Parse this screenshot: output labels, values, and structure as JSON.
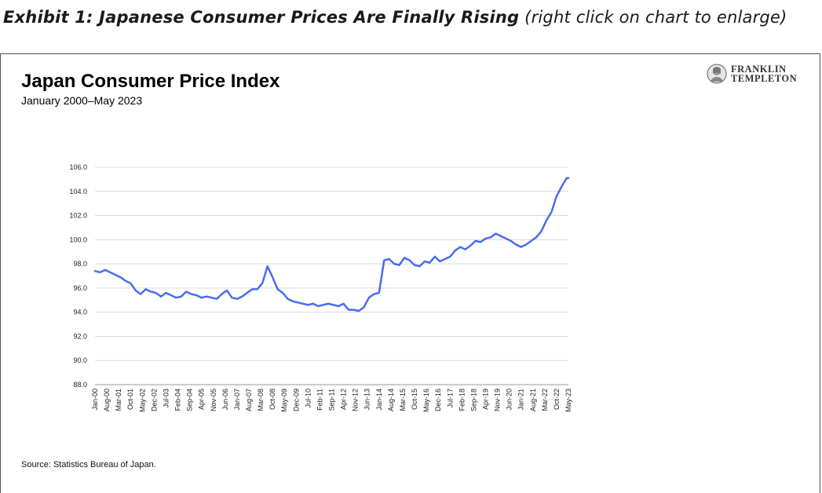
{
  "exhibit": {
    "label": "Exhibit 1: Japanese Consumer Prices Are Finally Rising",
    "note": "(right click on chart to enlarge)"
  },
  "logo": {
    "line1": "FRANKLIN",
    "line2": "TEMPLETON",
    "icon": "franklin-portrait-icon"
  },
  "source": "Source: Statistics Bureau of Japan.",
  "colors": {
    "line": "#4a6cf0",
    "grid": "#d9d9d9",
    "axis": "#999999"
  },
  "chart_data": {
    "type": "line",
    "title": "Japan Consumer Price Index",
    "subtitle": "January 2000–May 2023",
    "xlabel": "",
    "ylabel": "",
    "ylim": [
      88.0,
      106.0
    ],
    "yticks": [
      "88.0",
      "90.0",
      "92.0",
      "94.0",
      "96.0",
      "98.0",
      "100.0",
      "102.0",
      "104.0",
      "106.0"
    ],
    "grid": "horizontal",
    "legend": "none",
    "xtick_labels": [
      "Jan-00",
      "Aug-00",
      "Mar-01",
      "Oct-01",
      "May-02",
      "Dec-02",
      "Jul-03",
      "Feb-04",
      "Sep-04",
      "Apr-05",
      "Nov-05",
      "Jun-06",
      "Jan-07",
      "Aug-07",
      "Mar-08",
      "Oct-08",
      "May-09",
      "Dec-09",
      "Jul-10",
      "Feb-11",
      "Sep-11",
      "Apr-12",
      "Nov-12",
      "Jun-13",
      "Jan-14",
      "Aug-14",
      "Mar-15",
      "Oct-15",
      "May-16",
      "Dec-16",
      "Jul-17",
      "Feb-18",
      "Sep-18",
      "Apr-19",
      "Nov-19",
      "Jun-20",
      "Jan-21",
      "Aug-21",
      "Mar-22",
      "Oct-22",
      "May-23"
    ],
    "series": [
      {
        "name": "",
        "x": [
          "Jan-00",
          "Apr-00",
          "Jul-00",
          "Oct-00",
          "Jan-01",
          "Apr-01",
          "Jul-01",
          "Oct-01",
          "Jan-02",
          "Apr-02",
          "Jul-02",
          "Oct-02",
          "Jan-03",
          "Apr-03",
          "Jul-03",
          "Oct-03",
          "Jan-04",
          "Apr-04",
          "Jul-04",
          "Oct-04",
          "Jan-05",
          "Apr-05",
          "Jul-05",
          "Oct-05",
          "Jan-06",
          "Apr-06",
          "Jul-06",
          "Oct-06",
          "Jan-07",
          "Apr-07",
          "Jul-07",
          "Oct-07",
          "Jan-08",
          "Apr-08",
          "Jul-08",
          "Oct-08",
          "Jan-09",
          "Apr-09",
          "Jul-09",
          "Oct-09",
          "Jan-10",
          "Apr-10",
          "Jul-10",
          "Oct-10",
          "Jan-11",
          "Apr-11",
          "Jul-11",
          "Oct-11",
          "Jan-12",
          "Apr-12",
          "Jul-12",
          "Oct-12",
          "Jan-13",
          "Apr-13",
          "Jul-13",
          "Oct-13",
          "Jan-14",
          "Apr-14",
          "Jul-14",
          "Oct-14",
          "Jan-15",
          "Apr-15",
          "Jul-15",
          "Oct-15",
          "Jan-16",
          "Apr-16",
          "Jul-16",
          "Oct-16",
          "Jan-17",
          "Apr-17",
          "Jul-17",
          "Oct-17",
          "Jan-18",
          "Apr-18",
          "Jul-18",
          "Oct-18",
          "Jan-19",
          "Apr-19",
          "Jul-19",
          "Oct-19",
          "Jan-20",
          "Apr-20",
          "Jul-20",
          "Oct-20",
          "Jan-21",
          "Apr-21",
          "Jul-21",
          "Oct-21",
          "Jan-22",
          "Apr-22",
          "Jul-22",
          "Oct-22",
          "Jan-23",
          "Apr-23",
          "May-23"
        ],
        "values": [
          97.4,
          97.3,
          97.5,
          97.3,
          97.1,
          96.9,
          96.6,
          96.4,
          95.8,
          95.5,
          95.9,
          95.7,
          95.6,
          95.3,
          95.6,
          95.4,
          95.2,
          95.3,
          95.7,
          95.5,
          95.4,
          95.2,
          95.3,
          95.2,
          95.1,
          95.5,
          95.8,
          95.2,
          95.1,
          95.3,
          95.6,
          95.9,
          95.9,
          96.4,
          97.8,
          96.9,
          95.9,
          95.6,
          95.1,
          94.9,
          94.8,
          94.7,
          94.6,
          94.7,
          94.5,
          94.6,
          94.7,
          94.6,
          94.5,
          94.7,
          94.2,
          94.2,
          94.1,
          94.4,
          95.2,
          95.5,
          95.6,
          98.3,
          98.4,
          98.0,
          97.9,
          98.5,
          98.3,
          97.9,
          97.8,
          98.2,
          98.1,
          98.6,
          98.2,
          98.4,
          98.6,
          99.1,
          99.4,
          99.2,
          99.5,
          99.9,
          99.8,
          100.1,
          100.2,
          100.5,
          100.3,
          100.1,
          99.9,
          99.6,
          99.4,
          99.6,
          99.9,
          100.2,
          100.7,
          101.6,
          102.3,
          103.6,
          104.4,
          105.1,
          105.1
        ]
      }
    ]
  }
}
